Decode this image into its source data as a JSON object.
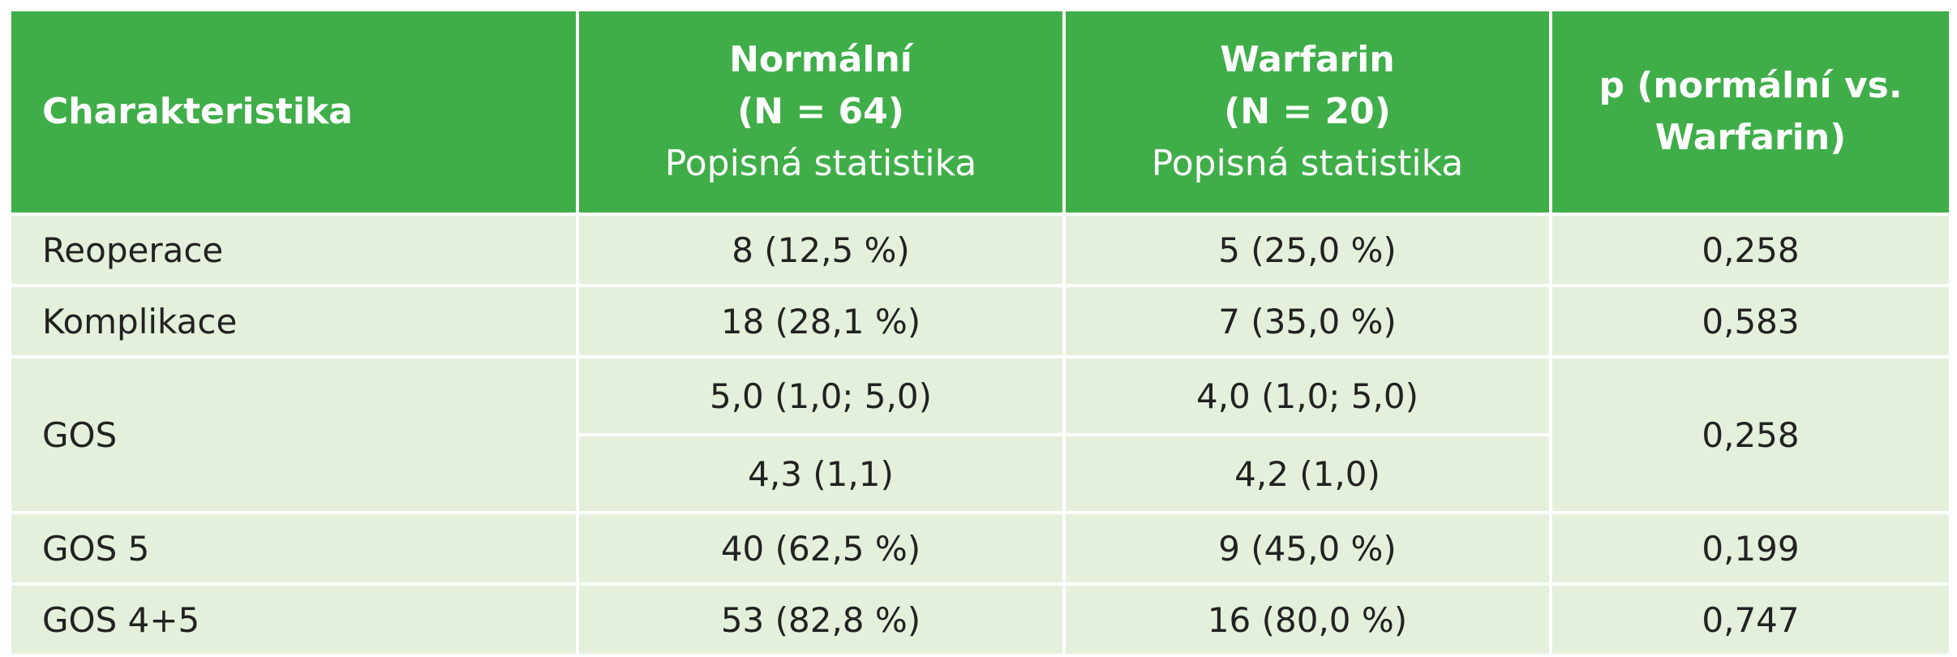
{
  "header": {
    "col1": "Charakteristika",
    "col2": {
      "line1": "Normální",
      "line2": "(N = 64)",
      "line3": "Popisná statistika"
    },
    "col3": {
      "line1": "Warfarin",
      "line2": "(N = 20)",
      "line3": "Popisná statistika"
    },
    "col4": {
      "line1": "p (normální vs.",
      "line2": "Warfarin)"
    }
  },
  "rows": [
    {
      "label": "Reoperace",
      "normal": "8 (12,5 %)",
      "warfarin": "5 (25,0 %)",
      "p": "0,258"
    },
    {
      "label": "Komplikace",
      "normal": "18 (28,1 %)",
      "warfarin": "7 (35,0 %)",
      "p": "0,583"
    },
    {
      "label": "GOS",
      "normal": "5,0 (1,0; 5,0)",
      "warfarin": "4,0 (1,0; 5,0)",
      "normal2": "4,3 (1,1)",
      "warfarin2": "4,2 (1,0)",
      "p": "0,258"
    },
    {
      "label": "GOS 5",
      "normal": "40 (62,5 %)",
      "warfarin": "9 (45,0 %)",
      "p": "0,199"
    },
    {
      "label": "GOS 4+5",
      "normal": "53 (82,8 %)",
      "warfarin": "16 (80,0 %)",
      "p": "0,747"
    }
  ],
  "colors": {
    "header_bg": "#3fae49",
    "body_bg": "#e4f0dc",
    "header_text": "#ffffff",
    "body_text": "#222222"
  }
}
